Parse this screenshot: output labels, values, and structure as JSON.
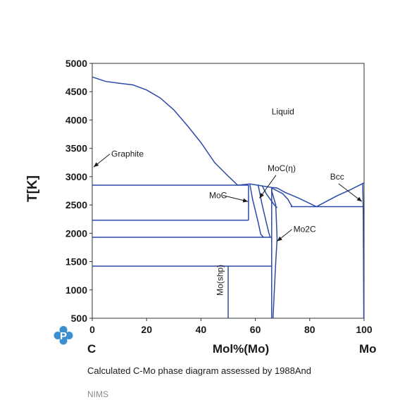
{
  "chart_data": {
    "type": "line",
    "title": "",
    "xlabel": "Mol%(Mo)",
    "ylabel": "T[K]",
    "x_end_labels": {
      "left": "C",
      "right": "Mo"
    },
    "xlim": [
      0,
      100
    ],
    "ylim": [
      500,
      5000
    ],
    "xticks": [
      "0",
      "20",
      "40",
      "60",
      "80",
      "100"
    ],
    "yticks": [
      "5000",
      "4500",
      "4000",
      "3500",
      "3000",
      "2500",
      "2000",
      "1500",
      "1000",
      "500"
    ],
    "line_color": "#2b4aa8",
    "grid": false,
    "series": [
      {
        "values": [
          [
            0,
            4760
          ],
          [
            5,
            4680
          ],
          [
            10,
            4650
          ],
          [
            15,
            4620
          ],
          [
            20,
            4530
          ],
          [
            25,
            4390
          ],
          [
            30,
            4180
          ],
          [
            35,
            3900
          ],
          [
            40,
            3600
          ],
          [
            45,
            3250
          ],
          [
            50,
            3010
          ],
          [
            53.5,
            2850
          ],
          [
            55.5,
            2860
          ],
          [
            58,
            2870
          ],
          [
            62,
            2840
          ],
          [
            66,
            2810
          ],
          [
            68,
            2800
          ],
          [
            71,
            2720
          ],
          [
            73,
            2680
          ],
          [
            76,
            2620
          ],
          [
            79,
            2550
          ],
          [
            82.5,
            2470
          ],
          [
            86,
            2560
          ],
          [
            90,
            2660
          ],
          [
            95,
            2770
          ],
          [
            100,
            2890
          ]
        ]
      },
      {
        "values": [
          [
            0,
            2850
          ],
          [
            57.5,
            2850
          ]
        ]
      },
      {
        "values": [
          [
            0,
            2230
          ],
          [
            57.5,
            2230
          ]
        ]
      },
      {
        "values": [
          [
            57.5,
            2850
          ],
          [
            57.5,
            2230
          ]
        ]
      },
      {
        "values": [
          [
            58,
            2860
          ],
          [
            59,
            2600
          ],
          [
            60,
            2400
          ],
          [
            61,
            2200
          ],
          [
            62,
            1980
          ],
          [
            63,
            1930
          ]
        ]
      },
      {
        "values": [
          [
            61,
            2860
          ],
          [
            62.5,
            2500
          ],
          [
            64,
            2200
          ],
          [
            65,
            2000
          ],
          [
            65.5,
            1930
          ]
        ]
      },
      {
        "values": [
          [
            0,
            1930
          ],
          [
            66,
            1930
          ]
        ]
      },
      {
        "values": [
          [
            62.5,
            2840
          ],
          [
            64,
            2700
          ],
          [
            65.5,
            2600
          ],
          [
            67,
            2500
          ],
          [
            68,
            2450
          ]
        ]
      },
      {
        "values": [
          [
            66,
            2800
          ],
          [
            66,
            500
          ]
        ]
      },
      {
        "values": [
          [
            66,
            2800
          ],
          [
            66,
            2750
          ],
          [
            67.5,
            2500
          ],
          [
            68,
            1900
          ],
          [
            67.5,
            1500
          ],
          [
            67,
            1000
          ],
          [
            66.5,
            500
          ]
        ]
      },
      {
        "values": [
          [
            66,
            2800
          ],
          [
            70,
            2700
          ],
          [
            72,
            2600
          ],
          [
            73.5,
            2470
          ]
        ]
      },
      {
        "values": [
          [
            73,
            2470
          ],
          [
            100,
            2470
          ]
        ]
      },
      {
        "values": [
          [
            0,
            1420
          ],
          [
            66,
            1420
          ]
        ]
      },
      {
        "values": [
          [
            50,
            1420
          ],
          [
            50,
            500
          ]
        ]
      },
      {
        "values": [
          [
            99.5,
            2880
          ],
          [
            99.7,
            2400
          ],
          [
            99.8,
            1500
          ],
          [
            99.9,
            500
          ]
        ]
      }
    ],
    "annotations": [
      {
        "text": "Liquid",
        "x": 66,
        "y": 4100
      },
      {
        "text": "Graphite",
        "x": 7,
        "y": 3350,
        "arrow_to": [
          0.5,
          3170
        ]
      },
      {
        "text": "MoC(η)",
        "x": 64.5,
        "y": 3100,
        "arrow_to": [
          61.5,
          2620
        ]
      },
      {
        "text": "MoC",
        "x": 43,
        "y": 2620,
        "arrow_to": [
          57.3,
          2560
        ]
      },
      {
        "text": "Bcc",
        "x": 87.5,
        "y": 2950,
        "arrow_to": [
          99.2,
          2560
        ]
      },
      {
        "text": "Mo2C",
        "x": 74,
        "y": 2020,
        "arrow_to": [
          68,
          1860
        ]
      },
      {
        "text": "Mo(shp)",
        "x": 48,
        "y": 900,
        "rotate": -90
      }
    ]
  },
  "caption": {
    "text": "Calculated C-Mo phase diagram assessed by",
    "source": "1988And"
  },
  "credit": "NIMS",
  "logo": {
    "icon": "p-logo-icon",
    "letter": "P",
    "color": "#3a8fd0"
  }
}
